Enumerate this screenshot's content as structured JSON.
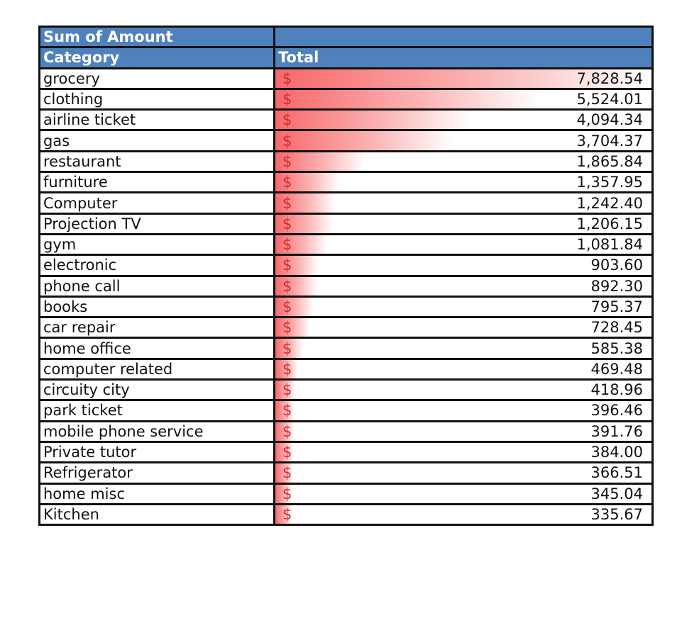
{
  "header": {
    "title": "Sum of Amount",
    "col1": "Category",
    "col2": "Total"
  },
  "currency_symbol": "$",
  "chart_data": {
    "type": "table",
    "title": "Sum of Amount",
    "columns": [
      "Category",
      "Total"
    ],
    "style": "data bars (red gradient)",
    "bar_color": "#f8696b",
    "header_color": "#4f81bd",
    "categories": [
      "grocery",
      "clothing",
      "airline ticket",
      "gas",
      "restaurant",
      "furniture",
      "Computer",
      "Projection TV",
      "gym",
      "electronic",
      "phone call",
      "books",
      "car repair",
      "home office",
      "computer related",
      "circuity city",
      "park ticket",
      "mobile phone service",
      "Private tutor",
      "Refrigerator",
      "home misc",
      "Kitchen"
    ],
    "values": [
      7828.54,
      5524.01,
      4094.34,
      3704.37,
      1865.84,
      1357.95,
      1242.4,
      1206.15,
      1081.84,
      903.6,
      892.3,
      795.37,
      728.45,
      585.38,
      469.48,
      418.96,
      396.46,
      391.76,
      384.0,
      366.51,
      345.04,
      335.67
    ],
    "rows": [
      {
        "category": "grocery",
        "display": "7,828.54"
      },
      {
        "category": "clothing",
        "display": "5,524.01"
      },
      {
        "category": "airline ticket",
        "display": "4,094.34"
      },
      {
        "category": "gas",
        "display": "3,704.37"
      },
      {
        "category": "restaurant",
        "display": "1,865.84"
      },
      {
        "category": "furniture",
        "display": "1,357.95"
      },
      {
        "category": "Computer",
        "display": "1,242.40"
      },
      {
        "category": "Projection TV",
        "display": "1,206.15"
      },
      {
        "category": "gym",
        "display": "1,081.84"
      },
      {
        "category": "electronic",
        "display": "903.60"
      },
      {
        "category": "phone call",
        "display": "892.30"
      },
      {
        "category": "books",
        "display": "795.37"
      },
      {
        "category": "car repair",
        "display": "728.45"
      },
      {
        "category": "home office",
        "display": "585.38"
      },
      {
        "category": "computer related",
        "display": "469.48"
      },
      {
        "category": "circuity city",
        "display": "418.96"
      },
      {
        "category": "park ticket",
        "display": "396.46"
      },
      {
        "category": "mobile phone service",
        "display": "391.76"
      },
      {
        "category": "Private tutor",
        "display": "384.00"
      },
      {
        "category": "Refrigerator",
        "display": "366.51"
      },
      {
        "category": "home misc",
        "display": "345.04"
      },
      {
        "category": "Kitchen",
        "display": "335.67"
      }
    ]
  }
}
